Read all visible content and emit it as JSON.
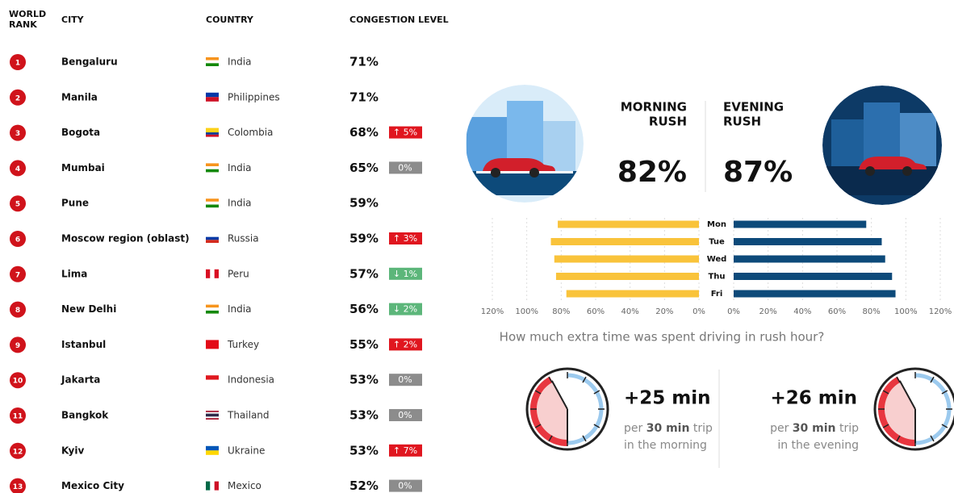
{
  "table": {
    "headers": {
      "rank": "WORLD RANK",
      "city": "CITY",
      "country": "COUNTRY",
      "level": "CONGESTION LEVEL"
    },
    "rows": [
      {
        "rank": "1",
        "city": "Bengaluru",
        "country": "India",
        "level": "71%",
        "flag_colors": [
          "#f7941d",
          "#ffffff",
          "#138808"
        ],
        "flag_orientation": "horizontal"
      },
      {
        "rank": "2",
        "city": "Manila",
        "country": "Philippines",
        "level": "71%",
        "flag_colors": [
          "#0038a8",
          "#ce1126"
        ],
        "flag_orientation": "horizontal"
      },
      {
        "rank": "3",
        "city": "Bogota",
        "country": "Colombia",
        "level": "68%",
        "change": "↑ 5%",
        "flag_colors": [
          "#fcd116",
          "#fcd116",
          "#003893",
          "#ce1126"
        ],
        "flag_orientation": "horizontal"
      },
      {
        "rank": "4",
        "city": "Mumbai",
        "country": "India",
        "level": "65%",
        "change": "0%",
        "flag_colors": [
          "#f7941d",
          "#ffffff",
          "#138808"
        ],
        "flag_orientation": "horizontal"
      },
      {
        "rank": "5",
        "city": "Pune",
        "country": "India",
        "level": "59%",
        "flag_colors": [
          "#f7941d",
          "#ffffff",
          "#138808"
        ],
        "flag_orientation": "horizontal"
      },
      {
        "rank": "6",
        "city": "Moscow region (oblast)",
        "country": "Russia",
        "level": "59%",
        "change": "↑ 3%",
        "flag_colors": [
          "#ffffff",
          "#0039a6",
          "#d52b1e"
        ],
        "flag_orientation": "horizontal"
      },
      {
        "rank": "7",
        "city": "Lima",
        "country": "Peru",
        "level": "57%",
        "change": "↓ 1%",
        "flag_colors": [
          "#d91023",
          "#ffffff",
          "#d91023"
        ],
        "flag_orientation": "vertical"
      },
      {
        "rank": "8",
        "city": "New Delhi",
        "country": "India",
        "level": "56%",
        "change": "↓ 2%",
        "flag_colors": [
          "#f7941d",
          "#ffffff",
          "#138808"
        ],
        "flag_orientation": "horizontal"
      },
      {
        "rank": "9",
        "city": "Istanbul",
        "country": "Turkey",
        "level": "55%",
        "change": "↑ 2%",
        "flag_colors": [
          "#e30a17"
        ],
        "flag_orientation": "horizontal"
      },
      {
        "rank": "10",
        "city": "Jakarta",
        "country": "Indonesia",
        "level": "53%",
        "change": "0%",
        "flag_colors": [
          "#e0181f",
          "#ffffff"
        ],
        "flag_orientation": "horizontal"
      },
      {
        "rank": "11",
        "city": "Bangkok",
        "country": "Thailand",
        "level": "53%",
        "change": "0%",
        "flag_colors": [
          "#a51931",
          "#f4f5f8",
          "#2d2a4a",
          "#2d2a4a",
          "#f4f5f8",
          "#a51931"
        ],
        "flag_orientation": "horizontal"
      },
      {
        "rank": "12",
        "city": "Kyiv",
        "country": "Ukraine",
        "level": "53%",
        "change": "↑ 7%",
        "flag_colors": [
          "#0057b7",
          "#ffd700"
        ],
        "flag_orientation": "horizontal"
      },
      {
        "rank": "13",
        "city": "Mexico City",
        "country": "Mexico",
        "level": "52%",
        "change": "0%",
        "flag_colors": [
          "#006847",
          "#ffffff",
          "#ce1126"
        ],
        "flag_orientation": "vertical"
      }
    ]
  },
  "rush": {
    "morning": {
      "title": [
        "MORNING",
        "RUSH"
      ],
      "value": "82%"
    },
    "evening": {
      "title": [
        "EVENING",
        "RUSH"
      ],
      "value": "87%"
    }
  },
  "chart_data": {
    "type": "butterfly",
    "categories": [
      "Mon",
      "Tue",
      "Wed",
      "Thu",
      "Fri"
    ],
    "series": [
      {
        "color": "#f9c33b",
        "values": [
          82,
          86,
          84,
          83,
          77
        ]
      },
      {
        "color": "#0d4a7a",
        "values": [
          77,
          86,
          88,
          92,
          94
        ]
      }
    ],
    "xlim": [
      0,
      120
    ],
    "xticks": [
      {
        "value": 0,
        "label": "0%"
      },
      {
        "value": 20,
        "label": "20%"
      },
      {
        "value": 40,
        "label": "40%"
      },
      {
        "value": 60,
        "label": "60%"
      },
      {
        "value": 80,
        "label": "80%"
      },
      {
        "value": 100,
        "label": "100%"
      },
      {
        "value": 120,
        "label": "120%"
      }
    ],
    "grid": true
  },
  "extra_time": {
    "question": "How much extra time was spent driving in rush hour?",
    "morning": {
      "value": "+25 min",
      "lead": "per",
      "bold": "30 min",
      "tail": "trip",
      "line2": "in the morning"
    },
    "evening": {
      "value": "+26 min",
      "lead": "per",
      "bold": "30 min",
      "tail": "trip",
      "line2": "in the evening"
    }
  }
}
